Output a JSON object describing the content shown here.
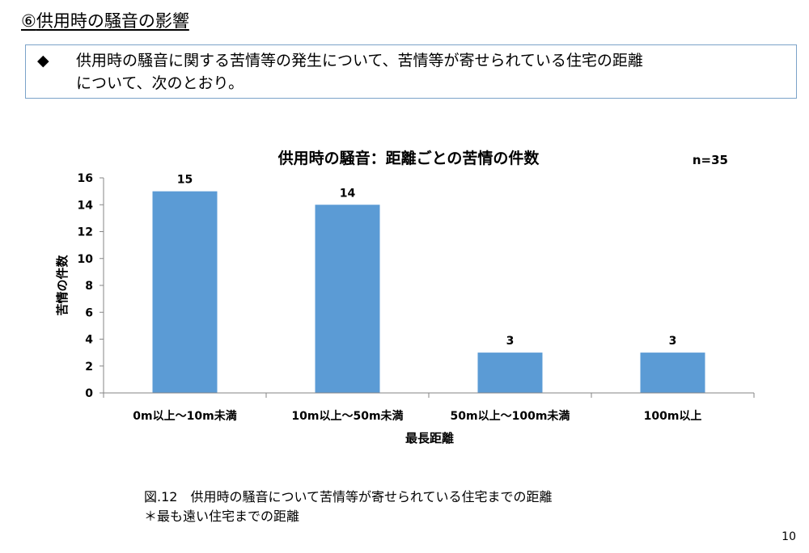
{
  "section_heading": {
    "marker": "⑥",
    "text": "供用時の騒音の影響"
  },
  "summary": {
    "bullet": "◆",
    "text": "供用時の騒音に関する苦情等の発生について、苦情等が寄せられている住宅の距離\nについて、次のとおり。"
  },
  "sample_size": "n=35",
  "chart_data": {
    "type": "bar",
    "title": "供用時の騒音：距離ごとの苦情の件数",
    "categories": [
      "0m以上～10m未満",
      "10m以上～50m未満",
      "50m以上～100m未満",
      "100m以上"
    ],
    "values": [
      15,
      14,
      3,
      3
    ],
    "data_labels": [
      "15",
      "14",
      "3",
      "3"
    ],
    "xlabel": "最長距離",
    "ylabel": "苦情の件数",
    "ylim": [
      0,
      16
    ],
    "yticks": [
      0,
      2,
      4,
      6,
      8,
      10,
      12,
      14,
      16
    ],
    "ytick_labels": [
      "0",
      "2",
      "4",
      "6",
      "8",
      "10",
      "12",
      "14",
      "16"
    ],
    "grid": false,
    "legend": "none",
    "bar_color": "#5b9bd5"
  },
  "caption": "図.12　供用時の騒音について苦情等が寄せられている住宅までの距離",
  "caption_note": "＊最も遠い住宅までの距離",
  "page_number": "10"
}
